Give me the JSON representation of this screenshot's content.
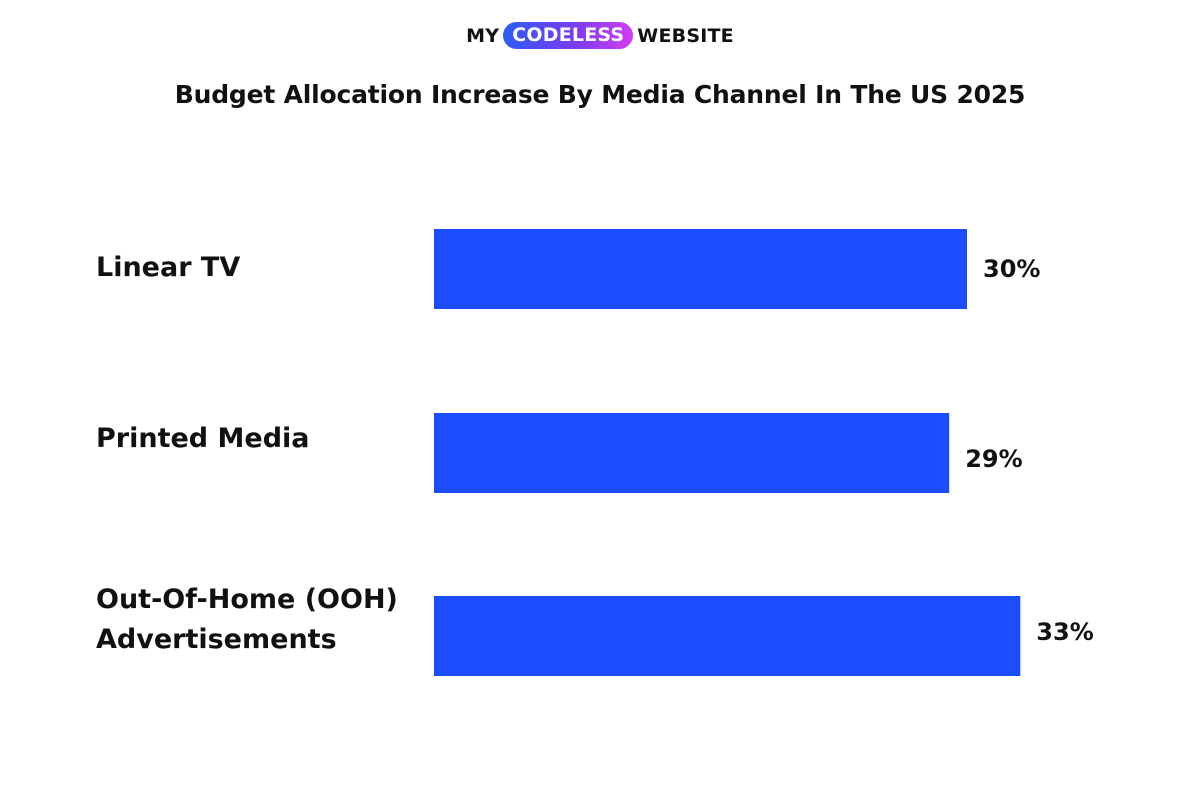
{
  "logo": {
    "left": "MY",
    "highlight": "CODELESS",
    "right": "WEBSITE",
    "gradient": [
      "#2a5cf5",
      "#7a3cf0",
      "#d23ef0"
    ]
  },
  "chart_data": {
    "type": "bar",
    "orientation": "horizontal",
    "title": "Budget Allocation Increase By Media Channel In The US 2025",
    "categories": [
      [
        "Linear TV"
      ],
      [
        "Printed Media"
      ],
      [
        "Out-Of-Home (OOH)",
        "Advertisements"
      ]
    ],
    "values": [
      30,
      29,
      33
    ],
    "value_labels": [
      "30%",
      "29%",
      "33%"
    ],
    "unit": "%",
    "bar_color": "#1b4dfc",
    "grid": false,
    "legend": "none"
  }
}
